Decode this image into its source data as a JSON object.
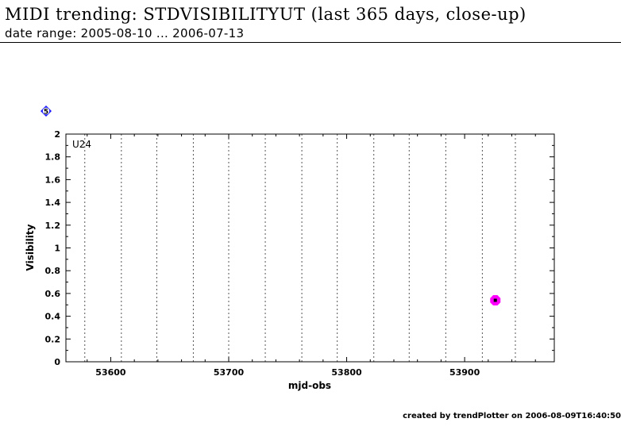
{
  "header": {
    "title": "MIDI trending: STDVISIBILITYUT (last 365 days, close-up)",
    "subtitle": "date range: 2005-08-10 ... 2006-07-13"
  },
  "footer": {
    "credit": "created by trendPlotter on 2006-08-09T16:40:50"
  },
  "marker_badge": {
    "label": "5",
    "color": "#1a1aff"
  },
  "colors": {
    "point_fill": "#ff00ff",
    "point_core": "#000000",
    "grid": "#555555"
  },
  "chart_data": {
    "type": "scatter",
    "title": "",
    "panel_label": "U24",
    "xlabel": "mjd-obs",
    "ylabel": "Visibility",
    "xlim": [
      53562,
      53976
    ],
    "ylim": [
      0,
      2
    ],
    "xticks": [
      53600,
      53700,
      53800,
      53900
    ],
    "yticks": [
      0,
      0.2,
      0.4,
      0.6,
      0.8,
      1,
      1.2,
      1.4,
      1.6,
      1.8,
      2
    ],
    "ytick_labels": [
      "0",
      "0.2",
      "0.4",
      "0.6",
      "0.8",
      "1",
      "1.2",
      "1.4",
      "1.6",
      "1.8",
      "2"
    ],
    "vertical_gridlines_x": [
      53578,
      53609,
      53639,
      53670,
      53700,
      53731,
      53762,
      53792,
      53823,
      53853,
      53884,
      53915,
      53943
    ],
    "grid": "vertical dotted",
    "points": [
      {
        "x": 53926,
        "y": 0.54
      }
    ]
  }
}
